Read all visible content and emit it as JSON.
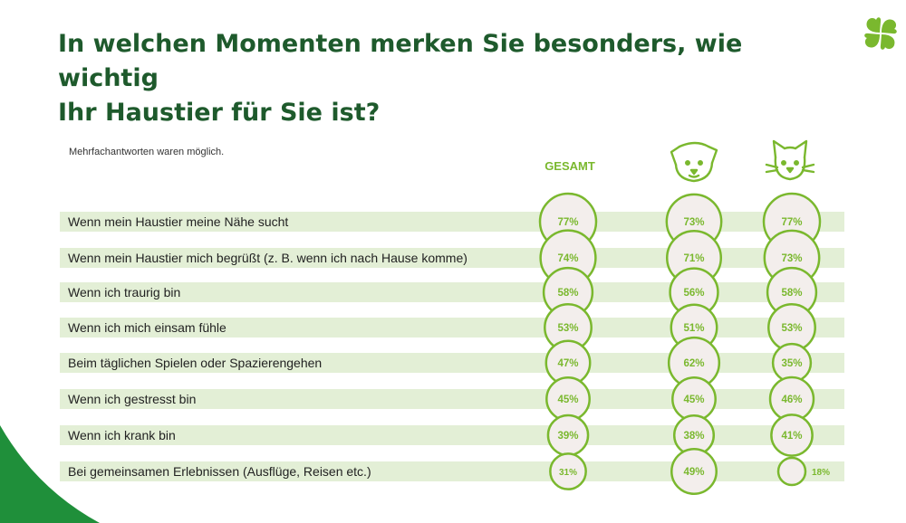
{
  "title_line1": "In welchen Momenten merken Sie besonders, wie wichtig",
  "title_line2": "Ihr Haustier für Sie ist?",
  "note": "Mehrfachantworten waren möglich.",
  "colors": {
    "title": "#1e5a2c",
    "accent": "#7ab82e",
    "row_band": "#e3efd6",
    "bubble_fill": "#f3eeec",
    "logo": "#7ab82e",
    "corner": "#1f8f3a"
  },
  "icons": {
    "logo": "four-leaf-clover",
    "column_2": "dog-face",
    "column_3": "cat-face"
  },
  "chart_data": {
    "type": "bubble-table",
    "columns": [
      "GESAMT",
      "",
      ""
    ],
    "categories": [
      "Wenn mein Haustier meine Nähe sucht",
      "Wenn mein Haustier mich begrüßt (z. B. wenn ich nach Hause komme)",
      "Wenn ich traurig bin",
      "Wenn ich mich einsam fühle",
      "Beim täglichen Spielen oder Spazierengehen",
      "Wenn ich gestresst bin",
      "Wenn ich krank bin",
      "Bei gemeinsamen Erlebnissen (Ausflüge, Reisen etc.)"
    ],
    "series": [
      {
        "values": [
          77,
          74,
          58,
          53,
          47,
          45,
          39,
          31
        ]
      },
      {
        "values": [
          73,
          71,
          56,
          51,
          62,
          45,
          38,
          49
        ]
      },
      {
        "values": [
          77,
          73,
          58,
          53,
          35,
          46,
          41,
          18
        ]
      }
    ],
    "unit": "%"
  }
}
